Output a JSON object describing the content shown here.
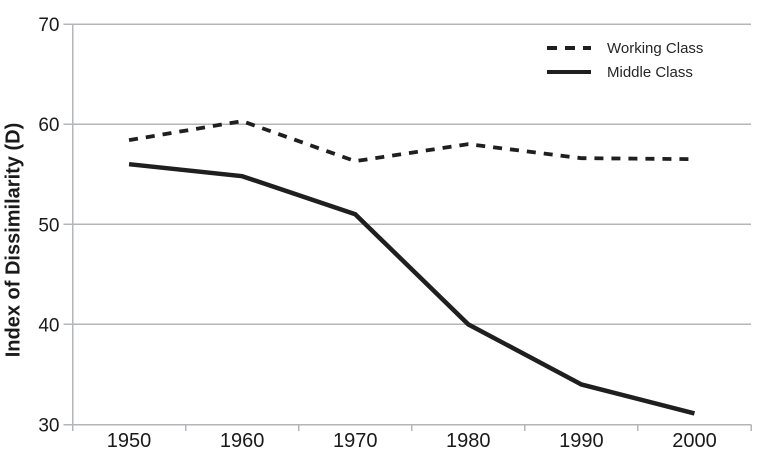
{
  "chart_data": {
    "type": "line",
    "title": "",
    "xlabel": "",
    "ylabel": "Index of Dissimilarity (D)",
    "x": [
      "1950",
      "1960",
      "1970",
      "1980",
      "1990",
      "2000"
    ],
    "series": [
      {
        "name": "Working Class",
        "style": "dashed",
        "values": [
          58.4,
          60.3,
          56.3,
          58.0,
          56.6,
          56.5
        ]
      },
      {
        "name": "Middle Class",
        "style": "solid",
        "values": [
          56.0,
          54.8,
          51.0,
          40.0,
          34.0,
          31.1
        ]
      }
    ],
    "ylim": [
      30,
      70
    ],
    "yticks": [
      "70",
      "60",
      "50",
      "40",
      "30"
    ],
    "ytick_values": [
      70,
      60,
      50,
      40,
      30
    ],
    "grid": "horizontal",
    "legend_position": "top-right"
  },
  "colors": {
    "line": "#1f1f1f",
    "grid": "#b2b5b9",
    "axis": "#b2b5b9",
    "text": "#1a1a1a"
  }
}
